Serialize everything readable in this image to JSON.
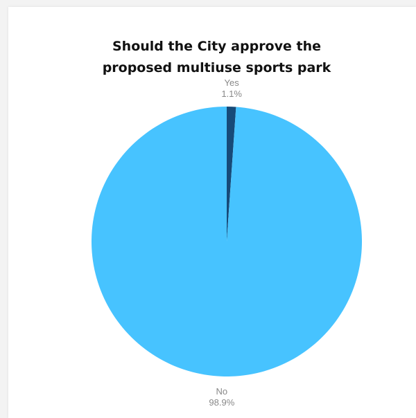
{
  "chart_data": {
    "type": "pie",
    "title": "Should the City approve the proposed multiuse sports park",
    "title_lines": [
      "Should the City approve the",
      "proposed multiuse sports park"
    ],
    "slices": [
      {
        "label": "Yes",
        "value": 1.1,
        "display": "1.1%",
        "color": "#174a78"
      },
      {
        "label": "No",
        "value": 98.9,
        "display": "98.9%",
        "color": "#47c3ff"
      }
    ]
  }
}
